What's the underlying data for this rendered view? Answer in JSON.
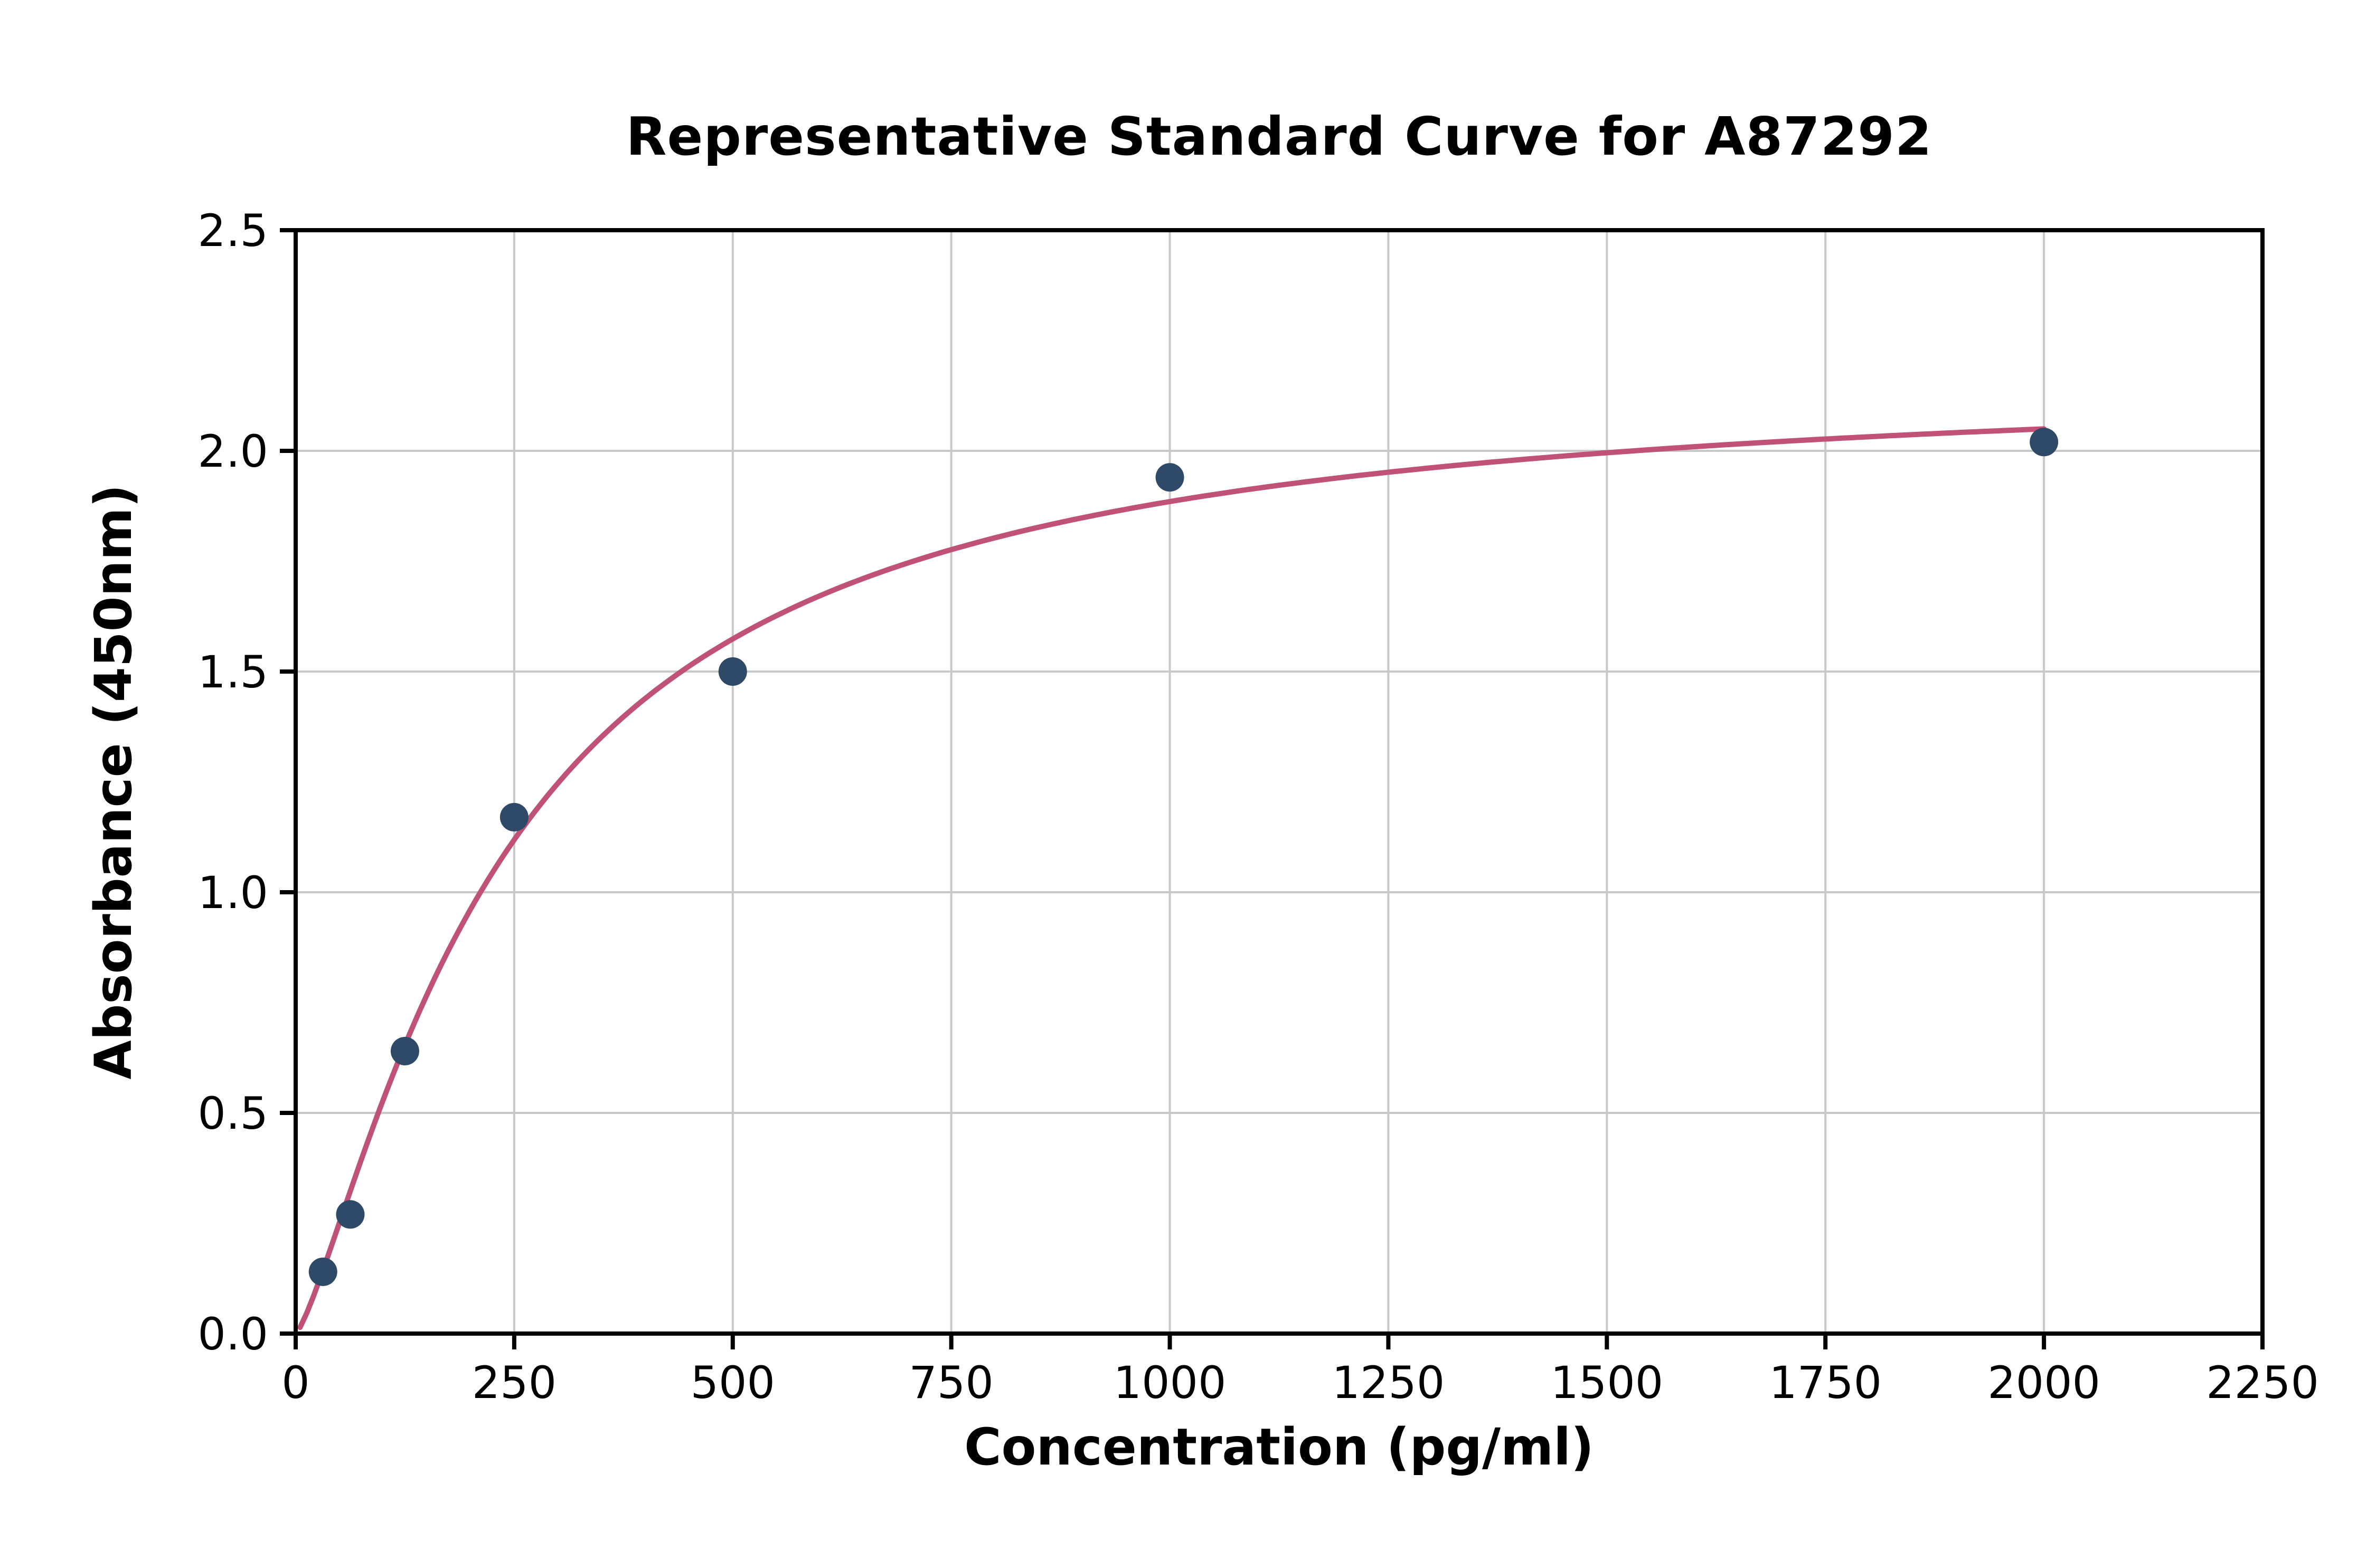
{
  "page": {
    "background": "#ffffff"
  },
  "chart_data": {
    "type": "scatter",
    "title": "Representative Standard Curve for A87292",
    "xlabel": "Concentration (pg/ml)",
    "ylabel": "Absorbance (450nm)",
    "xlim": [
      0,
      2250
    ],
    "ylim": [
      0,
      2.5
    ],
    "x_ticks": [
      0,
      250,
      500,
      750,
      1000,
      1250,
      1500,
      1750,
      2000,
      2250
    ],
    "x_tick_labels": [
      "0",
      "250",
      "500",
      "750",
      "1000",
      "1250",
      "1500",
      "1750",
      "2000",
      "2250"
    ],
    "y_ticks": [
      0.0,
      0.5,
      1.0,
      1.5,
      2.0,
      2.5
    ],
    "y_tick_labels": [
      "0.0",
      "0.5",
      "1.0",
      "1.5",
      "2.0",
      "2.5"
    ],
    "grid": true,
    "legend": "none",
    "points": {
      "name": "standards",
      "x": [
        31.25,
        62.5,
        125,
        250,
        500,
        1000,
        2000
      ],
      "y": [
        0.14,
        0.27,
        0.64,
        1.17,
        1.5,
        1.94,
        2.02
      ]
    },
    "fit_curve": {
      "type": "4pl-hill",
      "a": 0,
      "d": 2.18,
      "c": 240,
      "b": 1.3,
      "x_start": 5,
      "x_end": 2000
    },
    "colors": {
      "point": "#2e4a68",
      "curve": "#c05177",
      "grid": "#c8c8c8",
      "axis": "#000000",
      "text": "#000000",
      "background": "#ffffff"
    }
  }
}
